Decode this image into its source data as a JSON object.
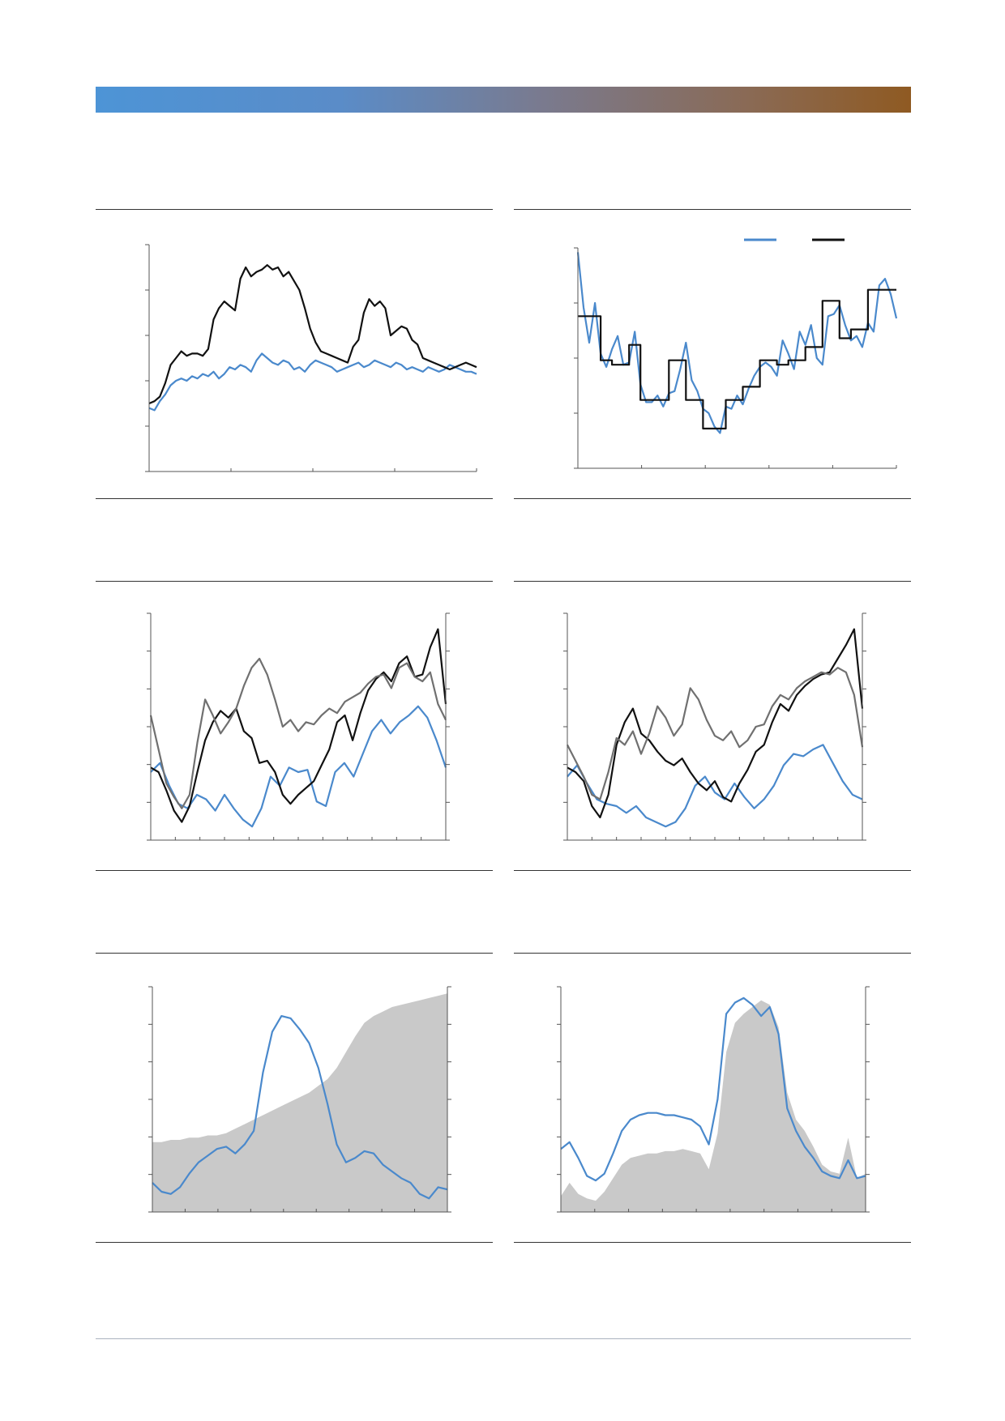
{
  "page": {
    "header_band_colors": [
      "#4d94d6",
      "#8f5a22"
    ],
    "footer_rule_color": "#aab3bf"
  },
  "colors": {
    "blue": "#4a89cc",
    "black": "#111111",
    "grey": "#707070",
    "area": "#c9c9c9",
    "axis": "#555555"
  },
  "panels": [
    {
      "id": "chart-1",
      "title": "",
      "source": "",
      "chart_data": {
        "type": "line",
        "title": "",
        "xlabel": "",
        "ylabel": "",
        "x_ticks": 4,
        "y_ticks": 5,
        "ylim": [
          0,
          100
        ],
        "grid": false,
        "legend": "none",
        "series": [
          {
            "color": "blue",
            "values": [
              28,
              27,
              31,
              34,
              38,
              40,
              41,
              40,
              42,
              41,
              43,
              42,
              44,
              41,
              43,
              46,
              45,
              47,
              46,
              44,
              49,
              52,
              50,
              48,
              47,
              49,
              48,
              45,
              46,
              44,
              47,
              49,
              48,
              47,
              46,
              44,
              45,
              46,
              47,
              48,
              46,
              47,
              49,
              48,
              47,
              46,
              48,
              47,
              45,
              46,
              45,
              44,
              46,
              45,
              44,
              45,
              47,
              46,
              45,
              44,
              44,
              43
            ]
          },
          {
            "color": "black",
            "values": [
              30,
              31,
              33,
              39,
              47,
              50,
              53,
              51,
              52,
              52,
              51,
              54,
              67,
              72,
              75,
              73,
              71,
              85,
              90,
              86,
              88,
              89,
              91,
              89,
              90,
              86,
              88,
              84,
              80,
              72,
              63,
              57,
              53,
              52,
              51,
              50,
              49,
              48,
              55,
              58,
              70,
              76,
              73,
              75,
              72,
              60,
              62,
              64,
              63,
              58,
              56,
              50,
              49,
              48,
              47,
              46,
              45,
              46,
              47,
              48,
              47,
              46
            ]
          }
        ]
      }
    },
    {
      "id": "chart-2",
      "title": "",
      "source": "",
      "chart_data": {
        "type": "line",
        "title": "",
        "xlabel": "",
        "ylabel": "",
        "x_ticks": 5,
        "y_ticks": 4,
        "ylim": [
          0,
          100
        ],
        "grid": false,
        "legend": "top-right",
        "series": [
          {
            "color": "blue",
            "values": [
              98,
              73,
              57,
              75,
              52,
              46,
              54,
              60,
              47,
              48,
              62,
              38,
              30,
              30,
              33,
              28,
              34,
              35,
              45,
              57,
              40,
              35,
              27,
              25,
              19,
              16,
              28,
              27,
              33,
              29,
              36,
              42,
              46,
              48,
              46,
              42,
              58,
              52,
              45,
              62,
              56,
              65,
              50,
              47,
              69,
              70,
              74,
              65,
              58,
              60,
              55,
              66,
              62,
              83,
              86,
              79,
              68
            ]
          },
          {
            "color": "black",
            "step": true,
            "values": [
              69,
              69,
              69,
              69,
              49,
              49,
              47,
              47,
              47,
              56,
              56,
              31,
              31,
              31,
              31,
              31,
              49,
              49,
              49,
              31,
              31,
              31,
              18,
              18,
              18,
              18,
              31,
              31,
              31,
              37,
              37,
              37,
              49,
              49,
              49,
              47,
              47,
              49,
              49,
              49,
              55,
              55,
              55,
              76,
              76,
              76,
              59,
              59,
              63,
              63,
              63,
              81,
              81,
              81,
              81,
              81,
              81
            ]
          }
        ]
      }
    },
    {
      "id": "chart-3",
      "title": "",
      "source": "",
      "chart_data": {
        "type": "line",
        "title": "",
        "xlabel": "",
        "ylabel": "",
        "x_ticks": 12,
        "y_ticks": 6,
        "y2_ticks": 6,
        "ylim": [
          0,
          100
        ],
        "grid": false,
        "legend": "none",
        "series": [
          {
            "color": "blue",
            "values": [
              30,
              34,
              24,
              16,
              14,
              20,
              18,
              13,
              20,
              14,
              9,
              6,
              14,
              28,
              24,
              32,
              30,
              31,
              17,
              15,
              30,
              34,
              28,
              38,
              48,
              53,
              47,
              52,
              55,
              59,
              54,
              44,
              32
            ]
          },
          {
            "color": "black",
            "values": [
              32,
              30,
              22,
              13,
              8,
              15,
              30,
              44,
              52,
              57,
              54,
              58,
              48,
              45,
              34,
              35,
              30,
              20,
              16,
              20,
              23,
              26,
              33,
              40,
              52,
              55,
              44,
              56,
              66,
              71,
              74,
              70,
              78,
              81,
              72,
              73,
              85,
              93,
              60
            ]
          },
          {
            "color": "grey",
            "values": [
              55,
              40,
              25,
              19,
              14,
              20,
              43,
              62,
              55,
              47,
              52,
              58,
              68,
              76,
              80,
              73,
              62,
              50,
              53,
              48,
              52,
              51,
              55,
              58,
              56,
              61,
              63,
              65,
              69,
              72,
              73,
              67,
              76,
              78,
              72,
              70,
              74,
              60,
              53
            ]
          }
        ]
      }
    },
    {
      "id": "chart-4",
      "title": "",
      "source": "",
      "chart_data": {
        "type": "line",
        "title": "",
        "xlabel": "",
        "ylabel": "",
        "x_ticks": 12,
        "y_ticks": 6,
        "y2_ticks": 6,
        "ylim": [
          0,
          100
        ],
        "grid": false,
        "legend": "none",
        "series": [
          {
            "color": "blue",
            "values": [
              28,
              33,
              25,
              18,
              16,
              15,
              12,
              15,
              10,
              8,
              6,
              8,
              14,
              24,
              28,
              21,
              18,
              25,
              19,
              14,
              18,
              24,
              33,
              38,
              37,
              40,
              42,
              34,
              26,
              20,
              18
            ]
          },
          {
            "color": "black",
            "values": [
              32,
              30,
              26,
              15,
              10,
              20,
              42,
              52,
              58,
              47,
              44,
              39,
              35,
              33,
              36,
              30,
              25,
              22,
              26,
              19,
              17,
              25,
              31,
              39,
              42,
              52,
              60,
              57,
              64,
              68,
              71,
              73,
              74,
              80,
              86,
              93,
              58
            ]
          },
          {
            "color": "grey",
            "values": [
              42,
              35,
              28,
              20,
              18,
              30,
              45,
              42,
              48,
              38,
              47,
              59,
              54,
              46,
              51,
              67,
              62,
              53,
              46,
              44,
              48,
              41,
              44,
              50,
              51,
              59,
              64,
              62,
              67,
              70,
              72,
              74,
              73,
              76,
              74,
              64,
              41
            ]
          }
        ]
      }
    },
    {
      "id": "chart-5",
      "title": "",
      "source": "",
      "chart_data": {
        "type": "area",
        "title": "",
        "xlabel": "",
        "ylabel": "",
        "x_ticks": 9,
        "y_ticks": 6,
        "y2_ticks": 6,
        "ylim": [
          0,
          100
        ],
        "grid": false,
        "legend": "none",
        "series": [
          {
            "color": "area",
            "kind": "area",
            "values": [
              31,
              31,
              32,
              32,
              33,
              33,
              34,
              34,
              35,
              37,
              39,
              41,
              43,
              45,
              47,
              49,
              51,
              53,
              56,
              59,
              64,
              71,
              78,
              84,
              87,
              89,
              91,
              92,
              93,
              94,
              95,
              96,
              97
            ]
          },
          {
            "color": "blue",
            "values": [
              13,
              9,
              8,
              11,
              17,
              22,
              25,
              28,
              29,
              26,
              30,
              36,
              62,
              80,
              87,
              86,
              81,
              75,
              64,
              48,
              30,
              22,
              24,
              27,
              26,
              21,
              18,
              15,
              13,
              8,
              6,
              11,
              10
            ]
          }
        ]
      }
    },
    {
      "id": "chart-6",
      "title": "",
      "source": "",
      "chart_data": {
        "type": "area",
        "title": "",
        "xlabel": "",
        "ylabel": "",
        "x_ticks": 9,
        "y_ticks": 6,
        "y2_ticks": 6,
        "ylim": [
          0,
          100
        ],
        "grid": false,
        "legend": "none",
        "series": [
          {
            "color": "area",
            "kind": "area",
            "values": [
              7,
              13,
              8,
              6,
              5,
              9,
              15,
              21,
              24,
              25,
              26,
              26,
              27,
              27,
              28,
              27,
              26,
              19,
              35,
              71,
              84,
              88,
              91,
              94,
              92,
              82,
              53,
              41,
              36,
              29,
              21,
              18,
              17,
              33,
              15,
              17
            ]
          },
          {
            "color": "blue",
            "values": [
              28,
              31,
              24,
              16,
              14,
              17,
              26,
              36,
              41,
              43,
              44,
              44,
              43,
              43,
              42,
              41,
              38,
              30,
              50,
              88,
              93,
              95,
              92,
              87,
              91,
              79,
              46,
              36,
              29,
              24,
              18,
              16,
              15,
              23,
              15,
              16
            ]
          }
        ]
      }
    }
  ]
}
